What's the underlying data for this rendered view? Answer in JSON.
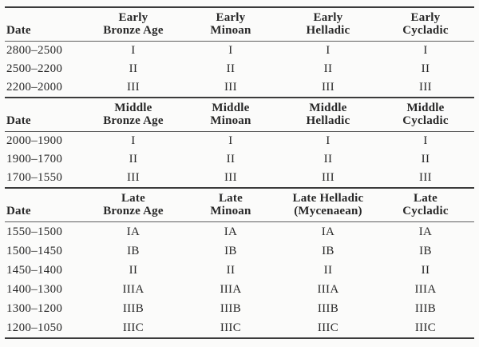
{
  "table": {
    "description": "Aegean Bronze Age chronology table",
    "sections": [
      {
        "name": "early-bronze-age",
        "date_label": "Date",
        "headers": [
          [
            "Early",
            "Bronze Age"
          ],
          [
            "Early",
            "Minoan"
          ],
          [
            "Early",
            "Helladic"
          ],
          [
            "Early",
            "Cycladic"
          ]
        ],
        "rows": [
          {
            "date": "2800–2500",
            "values": [
              "I",
              "I",
              "I",
              "I"
            ]
          },
          {
            "date": "2500–2200",
            "values": [
              "II",
              "II",
              "II",
              "II"
            ]
          },
          {
            "date": "2200–2000",
            "values": [
              "III",
              "III",
              "III",
              "III"
            ]
          }
        ]
      },
      {
        "name": "middle-bronze-age",
        "date_label": "Date",
        "headers": [
          [
            "Middle",
            "Bronze Age"
          ],
          [
            "Middle",
            "Minoan"
          ],
          [
            "Middle",
            "Helladic"
          ],
          [
            "Middle",
            "Cycladic"
          ]
        ],
        "rows": [
          {
            "date": "2000–1900",
            "values": [
              "I",
              "I",
              "I",
              "I"
            ]
          },
          {
            "date": "1900–1700",
            "values": [
              "II",
              "II",
              "II",
              "II"
            ]
          },
          {
            "date": "1700–1550",
            "values": [
              "III",
              "III",
              "III",
              "III"
            ]
          }
        ]
      },
      {
        "name": "late-bronze-age",
        "date_label": "Date",
        "headers": [
          [
            "Late",
            "Bronze Age"
          ],
          [
            "Late",
            "Minoan"
          ],
          [
            "Late Helladic",
            "(Mycenaean)"
          ],
          [
            "Late",
            "Cycladic"
          ]
        ],
        "rows": [
          {
            "date": "1550–1500",
            "values": [
              "IA",
              "IA",
              "IA",
              "IA"
            ]
          },
          {
            "date": "1500–1450",
            "values": [
              "IB",
              "IB",
              "IB",
              "IB"
            ]
          },
          {
            "date": "1450–1400",
            "values": [
              "II",
              "II",
              "II",
              "II"
            ]
          },
          {
            "date": "1400–1300",
            "values": [
              "IIIA",
              "IIIA",
              "IIIA",
              "IIIA"
            ]
          },
          {
            "date": "1300–1200",
            "values": [
              "IIIB",
              "IIIB",
              "IIIB",
              "IIIB"
            ]
          },
          {
            "date": "1200–1050",
            "values": [
              "IIIC",
              "IIIC",
              "IIIC",
              "IIIC"
            ]
          }
        ]
      }
    ]
  }
}
